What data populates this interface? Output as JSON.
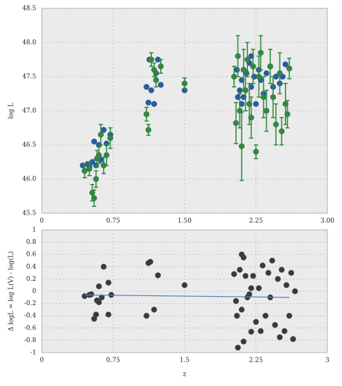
{
  "chart_data": [
    {
      "type": "scatter",
      "y_label": "log L",
      "xlim": [
        0,
        3
      ],
      "xticks": [
        0,
        0.75,
        {
          "value": 1.5,
          "label": "1.50"
        },
        2.25,
        {
          "value": 3,
          "label": "3.00"
        }
      ],
      "ylim": [
        45.5,
        48.5
      ],
      "yticks": [
        45.5,
        {
          "value": 46,
          "label": "46.0"
        },
        46.5,
        {
          "value": 47,
          "label": "47.0"
        },
        47.5,
        {
          "value": 48,
          "label": "48.0"
        },
        48.5
      ],
      "grid": true,
      "series": [
        {
          "color": "#1f5fa8",
          "x": [
            0.43,
            0.48,
            0.5,
            0.53,
            0.55,
            0.57,
            0.6,
            0.62,
            0.65,
            0.68,
            0.72,
            0.58,
            1.1,
            1.12,
            1.15,
            1.18,
            1.2,
            1.22,
            1.25,
            1.13,
            1.5,
            2.05,
            2.08,
            2.1,
            2.12,
            2.15,
            2.18,
            2.2,
            2.23,
            2.25,
            2.28,
            2.3,
            2.33,
            2.36,
            2.4,
            2.43,
            2.46,
            2.5,
            2.53,
            2.56,
            2.1,
            2.2,
            2.06
          ],
          "values": [
            46.2,
            46.22,
            46.18,
            46.25,
            46.55,
            46.2,
            46.5,
            46.28,
            46.72,
            46.52,
            46.65,
            46.3,
            47.35,
            47.12,
            47.3,
            47.1,
            47.55,
            47.75,
            47.38,
            47.75,
            47.3,
            47.6,
            47.3,
            47.45,
            47.2,
            47.55,
            47.7,
            47.35,
            47.5,
            47.1,
            47.6,
            47.45,
            47.25,
            47.55,
            47.65,
            47.35,
            47.5,
            47.4,
            47.5,
            47.68,
            47.1,
            47.8,
            47.2
          ]
        },
        {
          "color": "#2e8b3e",
          "x": [
            0.45,
            0.5,
            0.53,
            0.55,
            0.57,
            0.6,
            0.62,
            0.65,
            0.68,
            0.72,
            0.58,
            1.1,
            1.12,
            1.15,
            1.18,
            1.2,
            1.25,
            1.5,
            2.02,
            2.04,
            2.06,
            2.08,
            2.1,
            2.12,
            2.14,
            2.16,
            2.18,
            2.2,
            2.22,
            2.25,
            2.28,
            2.3,
            2.33,
            2.36,
            2.4,
            2.43,
            2.46,
            2.5,
            2.52,
            2.56,
            2.58,
            2.6
          ],
          "values": [
            46.12,
            46.15,
            45.8,
            45.72,
            46.0,
            46.35,
            46.65,
            46.2,
            46.35,
            46.6,
            46.3,
            46.95,
            46.72,
            47.75,
            47.6,
            47.45,
            47.65,
            47.4,
            47.5,
            46.82,
            47.8,
            47.0,
            46.48,
            47.6,
            47.3,
            47.75,
            47.1,
            46.9,
            47.65,
            46.4,
            47.5,
            47.85,
            47.2,
            47.0,
            47.65,
            47.2,
            46.8,
            47.55,
            46.7,
            47.1,
            46.95,
            47.62
          ],
          "errors": [
            0.1,
            0.1,
            0.12,
            0.12,
            0.12,
            0.12,
            0.15,
            0.12,
            0.15,
            0.15,
            0.12,
            0.1,
            0.08,
            0.1,
            0.1,
            0.1,
            0.1,
            0.08,
            0.15,
            0.3,
            0.3,
            0.25,
            0.5,
            0.3,
            0.3,
            0.25,
            0.3,
            0.3,
            0.25,
            0.1,
            0.3,
            0.25,
            0.3,
            0.3,
            0.25,
            0.3,
            0.3,
            0.3,
            0.2,
            0.3,
            0.2,
            0.15
          ]
        }
      ]
    },
    {
      "type": "scatter",
      "x_label": "z",
      "y_label": "Δ logL = log L(V) - log(L)",
      "xlim": [
        0,
        3
      ],
      "xticks": [
        0,
        0.75,
        1.5,
        2.25,
        3
      ],
      "ylim": [
        -1,
        1
      ],
      "yticks": [
        -1,
        -0.8,
        -0.6,
        -0.4,
        -0.2,
        0,
        0.2,
        0.4,
        0.6,
        0.8,
        1
      ],
      "grid": true,
      "series": [
        {
          "color": "#3a3a3a",
          "x": [
            0.45,
            0.5,
            0.52,
            0.55,
            0.57,
            0.58,
            0.6,
            0.6,
            0.63,
            0.65,
            0.7,
            0.7,
            0.73,
            1.1,
            1.12,
            1.14,
            1.18,
            1.22,
            1.5,
            2.02,
            2.04,
            2.05,
            2.06,
            2.08,
            2.1,
            2.1,
            2.12,
            2.12,
            2.14,
            2.16,
            2.18,
            2.2,
            2.2,
            2.22,
            2.25,
            2.28,
            2.3,
            2.32,
            2.35,
            2.38,
            2.4,
            2.42,
            2.45,
            2.48,
            2.5,
            2.52,
            2.55,
            2.57,
            2.6,
            2.62,
            2.64,
            2.66
          ],
          "values": [
            -0.08,
            -0.06,
            -0.05,
            -0.45,
            -0.38,
            -0.15,
            -0.18,
            0.08,
            -0.1,
            0.4,
            -0.38,
            0.14,
            -0.06,
            -0.4,
            0.46,
            0.48,
            -0.3,
            0.26,
            0.1,
            0.28,
            -0.16,
            -0.4,
            -0.92,
            0.35,
            -0.3,
            0.6,
            -0.82,
            0.55,
            0.25,
            -0.1,
            -0.05,
            0.05,
            -0.66,
            0.25,
            -0.5,
            0.05,
            -0.65,
            0.42,
            -0.4,
            0.3,
            -0.1,
            0.5,
            -0.55,
            0.2,
            -0.75,
            0.35,
            -0.65,
            0.1,
            -0.4,
            0.3,
            -0.78,
            0.0
          ]
        }
      ],
      "fit": {
        "color": "#4a86c8",
        "x": [
          0.45,
          2.6
        ],
        "values": [
          -0.06,
          -0.1
        ]
      }
    }
  ]
}
